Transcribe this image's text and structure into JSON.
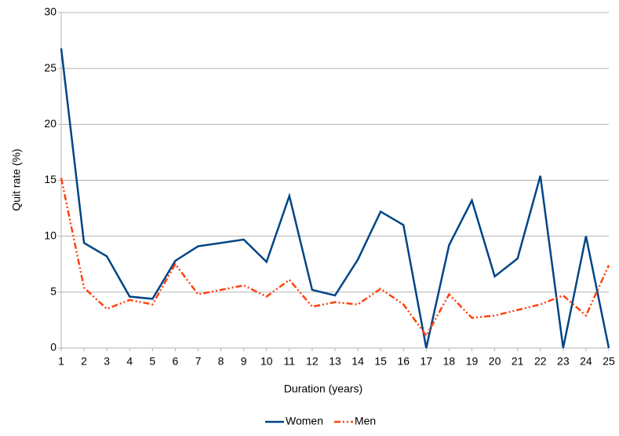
{
  "chart_data": {
    "type": "line",
    "x_label": "Duration (years)",
    "y_label": "Quit rate (%)",
    "x": [
      1,
      2,
      3,
      4,
      5,
      6,
      7,
      8,
      9,
      10,
      11,
      12,
      13,
      14,
      15,
      16,
      17,
      18,
      19,
      20,
      21,
      22,
      23,
      24,
      25
    ],
    "xlim": [
      1,
      25
    ],
    "xticks": [
      1,
      2,
      3,
      4,
      5,
      6,
      7,
      8,
      9,
      10,
      11,
      12,
      13,
      14,
      15,
      16,
      17,
      18,
      19,
      20,
      21,
      22,
      23,
      24,
      25
    ],
    "ylim": [
      0,
      30
    ],
    "yticks": [
      0,
      5,
      10,
      15,
      20,
      25,
      30
    ],
    "grid": true,
    "legend": "bottom",
    "series": [
      {
        "name": "Women",
        "color": "#004586",
        "dash": "solid",
        "values": [
          26.8,
          9.4,
          8.2,
          4.6,
          4.4,
          7.8,
          9.1,
          9.4,
          9.7,
          7.7,
          13.6,
          5.2,
          4.7,
          7.9,
          12.2,
          11.0,
          0,
          9.2,
          13.2,
          6.4,
          8.0,
          15.4,
          0,
          10.0,
          0
        ]
      },
      {
        "name": "Men",
        "color": "#ff420e",
        "dash": "dashdotdot",
        "values": [
          15.2,
          5.4,
          3.5,
          4.3,
          3.9,
          7.5,
          4.8,
          5.2,
          5.6,
          4.6,
          6.1,
          3.7,
          4.1,
          3.9,
          5.3,
          3.9,
          1.1,
          4.8,
          2.7,
          2.9,
          3.4,
          3.9,
          4.7,
          2.9,
          7.4
        ]
      }
    ]
  }
}
